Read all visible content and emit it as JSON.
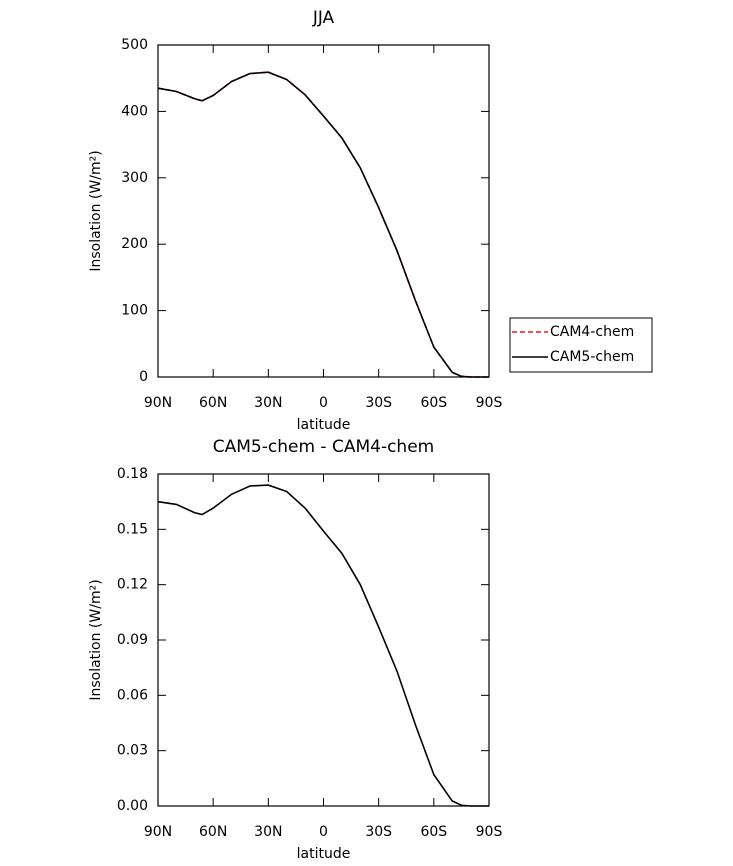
{
  "chart_data": [
    {
      "type": "line",
      "title": "JJA",
      "x_label": "latitude",
      "y_label": "Insolation (W/m²)",
      "x": [
        90,
        80,
        70,
        66,
        60,
        50,
        40,
        30,
        20,
        10,
        0,
        -10,
        -20,
        -30,
        -40,
        -50,
        -60,
        -70,
        -75,
        -80,
        -90
      ],
      "series": [
        {
          "name": "CAM4-chem",
          "color": "#e0202a",
          "dash": true,
          "values": [
            435,
            430,
            419,
            416,
            424,
            445,
            457,
            459,
            448,
            425,
            393,
            360,
            315,
            255,
            190,
            115,
            45,
            7,
            1,
            0,
            0
          ]
        },
        {
          "name": "CAM5-chem",
          "color": "#000000",
          "dash": false,
          "values": [
            435,
            430,
            419,
            416,
            424,
            445,
            457,
            459,
            448,
            425,
            393,
            360,
            315,
            255,
            190,
            115,
            45,
            7,
            1,
            0,
            0
          ]
        }
      ],
      "xlim": [
        90,
        -90
      ],
      "xticks": [
        {
          "value": 90,
          "label": "90N"
        },
        {
          "value": 60,
          "label": "60N"
        },
        {
          "value": 30,
          "label": "30N"
        },
        0,
        {
          "value": -30,
          "label": "30S"
        },
        {
          "value": -60,
          "label": "60S"
        },
        {
          "value": -90,
          "label": "90S"
        }
      ],
      "ylim": [
        0,
        500
      ],
      "yticks": [
        0,
        100,
        200,
        300,
        400,
        500
      ],
      "legend": "right"
    },
    {
      "type": "line",
      "title": "CAM5-chem - CAM4-chem",
      "x_label": "latitude",
      "y_label": "Insolation (W/m²)",
      "x": [
        90,
        80,
        70,
        66,
        60,
        50,
        40,
        30,
        20,
        10,
        0,
        -10,
        -20,
        -30,
        -40,
        -50,
        -60,
        -70,
        -75,
        -80,
        -90
      ],
      "series": [
        {
          "color": "#000000",
          "dash": false,
          "values": [
            0.165,
            0.1635,
            0.159,
            0.158,
            0.1615,
            0.169,
            0.1735,
            0.174,
            0.1705,
            0.1615,
            0.149,
            0.137,
            0.12,
            0.097,
            0.073,
            0.044,
            0.017,
            0.0027,
            0.0004,
            0,
            0
          ]
        }
      ],
      "xlim": [
        90,
        -90
      ],
      "xticks": [
        {
          "value": 90,
          "label": "90N"
        },
        {
          "value": 60,
          "label": "60N"
        },
        {
          "value": 30,
          "label": "30N"
        },
        0,
        {
          "value": -30,
          "label": "30S"
        },
        {
          "value": -60,
          "label": "60S"
        },
        {
          "value": -90,
          "label": "90S"
        }
      ],
      "ylim": [
        0,
        0.18
      ],
      "yticks": [
        {
          "value": 0,
          "label": "0.00"
        },
        0.03,
        0.06,
        0.09,
        0.12,
        0.15,
        0.18
      ]
    }
  ]
}
